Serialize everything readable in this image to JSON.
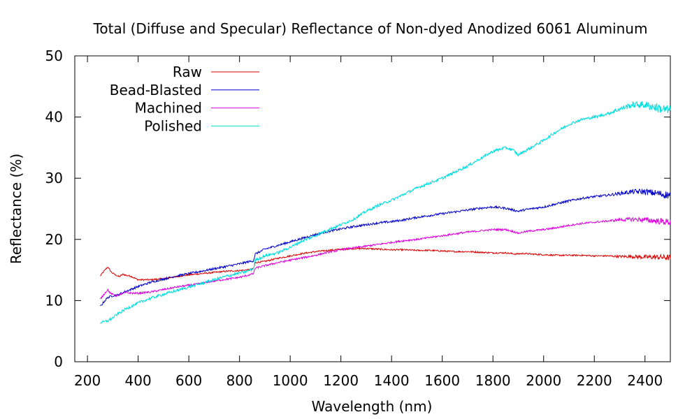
{
  "chart_data": {
    "type": "line",
    "title": "Total (Diffuse and Specular) Reflectance of Non-dyed Anodized 6061 Aluminum",
    "xlabel": "Wavelength (nm)",
    "ylabel": "Reflectance (%)",
    "xlim": [
      150,
      2500
    ],
    "ylim": [
      0,
      50
    ],
    "xticks": [
      200,
      400,
      600,
      800,
      1000,
      1200,
      1400,
      1600,
      1800,
      2000,
      2200,
      2400
    ],
    "yticks": [
      0,
      10,
      20,
      30,
      40,
      50
    ],
    "legend_position": "top-left",
    "grid": false,
    "series": [
      {
        "name": "Raw",
        "color": "#dd0000",
        "points": [
          [
            250,
            14.0
          ],
          [
            265,
            14.8
          ],
          [
            280,
            15.5
          ],
          [
            295,
            14.6
          ],
          [
            310,
            14.2
          ],
          [
            325,
            13.9
          ],
          [
            340,
            14.3
          ],
          [
            355,
            14.1
          ],
          [
            370,
            14.0
          ],
          [
            400,
            13.4
          ],
          [
            450,
            13.4
          ],
          [
            500,
            13.6
          ],
          [
            550,
            13.9
          ],
          [
            600,
            14.2
          ],
          [
            650,
            14.4
          ],
          [
            700,
            14.6
          ],
          [
            750,
            14.8
          ],
          [
            800,
            14.9
          ],
          [
            830,
            15.0
          ],
          [
            855,
            15.2
          ],
          [
            862,
            16.2
          ],
          [
            900,
            16.4
          ],
          [
            950,
            16.9
          ],
          [
            1000,
            17.3
          ],
          [
            1050,
            17.7
          ],
          [
            1100,
            18.0
          ],
          [
            1150,
            18.2
          ],
          [
            1200,
            18.4
          ],
          [
            1250,
            18.5
          ],
          [
            1300,
            18.5
          ],
          [
            1350,
            18.4
          ],
          [
            1400,
            18.3
          ],
          [
            1450,
            18.3
          ],
          [
            1500,
            18.2
          ],
          [
            1550,
            18.2
          ],
          [
            1600,
            18.1
          ],
          [
            1650,
            18.0
          ],
          [
            1700,
            18.0
          ],
          [
            1750,
            17.9
          ],
          [
            1800,
            17.8
          ],
          [
            1850,
            17.8
          ],
          [
            1890,
            17.6
          ],
          [
            1920,
            17.7
          ],
          [
            1950,
            17.6
          ],
          [
            2000,
            17.5
          ],
          [
            2050,
            17.4
          ],
          [
            2100,
            17.4
          ],
          [
            2150,
            17.4
          ],
          [
            2200,
            17.3
          ],
          [
            2250,
            17.3
          ],
          [
            2300,
            17.2
          ],
          [
            2350,
            17.2
          ],
          [
            2400,
            17.1
          ],
          [
            2450,
            17.1
          ],
          [
            2500,
            17.0
          ]
        ],
        "noise": 0.25
      },
      {
        "name": "Bead-Blasted",
        "color": "#0000cc",
        "points": [
          [
            250,
            9.0
          ],
          [
            265,
            9.8
          ],
          [
            280,
            10.5
          ],
          [
            300,
            10.8
          ],
          [
            320,
            10.9
          ],
          [
            340,
            11.3
          ],
          [
            370,
            11.8
          ],
          [
            400,
            12.3
          ],
          [
            450,
            13.0
          ],
          [
            500,
            13.5
          ],
          [
            550,
            14.0
          ],
          [
            600,
            14.4
          ],
          [
            650,
            14.8
          ],
          [
            700,
            15.2
          ],
          [
            750,
            15.6
          ],
          [
            800,
            16.0
          ],
          [
            830,
            16.3
          ],
          [
            855,
            16.5
          ],
          [
            862,
            17.6
          ],
          [
            900,
            18.4
          ],
          [
            950,
            19.0
          ],
          [
            1000,
            19.6
          ],
          [
            1050,
            20.2
          ],
          [
            1100,
            20.8
          ],
          [
            1150,
            21.3
          ],
          [
            1200,
            21.7
          ],
          [
            1250,
            22.1
          ],
          [
            1300,
            22.4
          ],
          [
            1350,
            22.7
          ],
          [
            1400,
            22.9
          ],
          [
            1450,
            23.2
          ],
          [
            1500,
            23.6
          ],
          [
            1550,
            23.9
          ],
          [
            1600,
            24.2
          ],
          [
            1650,
            24.5
          ],
          [
            1700,
            24.8
          ],
          [
            1750,
            25.1
          ],
          [
            1800,
            25.3
          ],
          [
            1850,
            25.1
          ],
          [
            1880,
            24.8
          ],
          [
            1900,
            24.6
          ],
          [
            1920,
            24.8
          ],
          [
            1950,
            25.0
          ],
          [
            2000,
            25.3
          ],
          [
            2050,
            25.8
          ],
          [
            2100,
            26.3
          ],
          [
            2150,
            26.7
          ],
          [
            2200,
            27.0
          ],
          [
            2250,
            27.2
          ],
          [
            2300,
            27.5
          ],
          [
            2350,
            27.8
          ],
          [
            2400,
            27.8
          ],
          [
            2450,
            27.5
          ],
          [
            2500,
            27.2
          ]
        ],
        "noise": 0.35
      },
      {
        "name": "Machined",
        "color": "#dd00dd",
        "points": [
          [
            250,
            10.2
          ],
          [
            265,
            11.0
          ],
          [
            280,
            11.8
          ],
          [
            290,
            11.2
          ],
          [
            310,
            10.8
          ],
          [
            330,
            11.0
          ],
          [
            350,
            11.3
          ],
          [
            380,
            11.2
          ],
          [
            400,
            11.2
          ],
          [
            450,
            11.4
          ],
          [
            500,
            11.8
          ],
          [
            550,
            12.2
          ],
          [
            600,
            12.5
          ],
          [
            650,
            12.8
          ],
          [
            700,
            13.2
          ],
          [
            750,
            13.5
          ],
          [
            800,
            13.8
          ],
          [
            830,
            14.1
          ],
          [
            855,
            14.4
          ],
          [
            862,
            15.3
          ],
          [
            900,
            15.7
          ],
          [
            950,
            16.2
          ],
          [
            1000,
            16.6
          ],
          [
            1050,
            17.0
          ],
          [
            1100,
            17.4
          ],
          [
            1150,
            17.9
          ],
          [
            1200,
            18.3
          ],
          [
            1250,
            18.6
          ],
          [
            1300,
            18.9
          ],
          [
            1350,
            19.2
          ],
          [
            1400,
            19.5
          ],
          [
            1450,
            19.8
          ],
          [
            1500,
            20.0
          ],
          [
            1550,
            20.3
          ],
          [
            1600,
            20.6
          ],
          [
            1650,
            20.9
          ],
          [
            1700,
            21.2
          ],
          [
            1750,
            21.4
          ],
          [
            1800,
            21.6
          ],
          [
            1850,
            21.6
          ],
          [
            1880,
            21.3
          ],
          [
            1900,
            21.0
          ],
          [
            1920,
            21.2
          ],
          [
            1950,
            21.4
          ],
          [
            2000,
            21.6
          ],
          [
            2050,
            21.9
          ],
          [
            2100,
            22.3
          ],
          [
            2150,
            22.6
          ],
          [
            2200,
            22.8
          ],
          [
            2250,
            23.0
          ],
          [
            2300,
            23.2
          ],
          [
            2350,
            23.3
          ],
          [
            2400,
            23.2
          ],
          [
            2450,
            23.0
          ],
          [
            2500,
            22.8
          ]
        ],
        "noise": 0.3
      },
      {
        "name": "Polished",
        "color": "#00dddd",
        "points": [
          [
            250,
            6.4
          ],
          [
            265,
            6.5
          ],
          [
            280,
            6.7
          ],
          [
            300,
            7.2
          ],
          [
            320,
            7.8
          ],
          [
            350,
            8.6
          ],
          [
            400,
            9.6
          ],
          [
            450,
            10.4
          ],
          [
            500,
            11.0
          ],
          [
            550,
            11.6
          ],
          [
            600,
            12.2
          ],
          [
            650,
            12.8
          ],
          [
            700,
            13.4
          ],
          [
            750,
            14.0
          ],
          [
            800,
            14.5
          ],
          [
            830,
            14.8
          ],
          [
            855,
            15.2
          ],
          [
            862,
            16.6
          ],
          [
            900,
            17.3
          ],
          [
            950,
            17.8
          ],
          [
            1000,
            18.7
          ],
          [
            1050,
            19.8
          ],
          [
            1100,
            20.6
          ],
          [
            1150,
            21.6
          ],
          [
            1200,
            22.4
          ],
          [
            1250,
            23.3
          ],
          [
            1300,
            24.6
          ],
          [
            1350,
            25.6
          ],
          [
            1400,
            26.4
          ],
          [
            1450,
            27.4
          ],
          [
            1500,
            28.4
          ],
          [
            1550,
            29.2
          ],
          [
            1600,
            30.0
          ],
          [
            1650,
            31.0
          ],
          [
            1700,
            32.0
          ],
          [
            1750,
            33.2
          ],
          [
            1800,
            34.4
          ],
          [
            1850,
            35.0
          ],
          [
            1880,
            34.6
          ],
          [
            1900,
            33.8
          ],
          [
            1920,
            34.3
          ],
          [
            1950,
            35.0
          ],
          [
            2000,
            36.2
          ],
          [
            2050,
            37.6
          ],
          [
            2100,
            38.8
          ],
          [
            2150,
            39.6
          ],
          [
            2200,
            40.0
          ],
          [
            2250,
            40.5
          ],
          [
            2300,
            41.3
          ],
          [
            2350,
            42.0
          ],
          [
            2400,
            42.0
          ],
          [
            2450,
            41.5
          ],
          [
            2500,
            41.0
          ]
        ],
        "noise": 0.45
      }
    ]
  }
}
